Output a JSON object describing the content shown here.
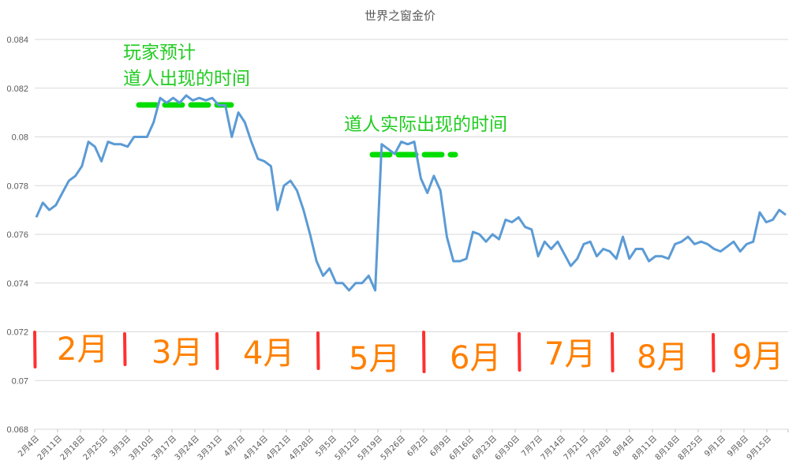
{
  "chart_data": {
    "type": "line",
    "title": "世界之窗金价",
    "xlabel": "",
    "ylabel": "",
    "ylim": [
      0.068,
      0.084
    ],
    "yticks": [
      "0.084",
      "0.082",
      "0.08",
      "0.078",
      "0.076",
      "0.074",
      "0.072",
      "0.07",
      "0.068"
    ],
    "grid": true,
    "legend": "none",
    "x_tick_labels": [
      "2月4日",
      "2月11日",
      "2月18日",
      "2月25日",
      "3月3日",
      "3月10日",
      "3月17日",
      "3月24日",
      "3月31日",
      "4月7日",
      "4月14日",
      "4月21日",
      "4月28日",
      "5月5日",
      "5月12日",
      "5月19日",
      "5月26日",
      "6月2日",
      "6月9日",
      "6月16日",
      "6月23日",
      "6月30日",
      "7月7日",
      "7月14日",
      "7月21日",
      "7月28日",
      "8月4日",
      "8月11日",
      "8月18日",
      "8月25日",
      "9月1日",
      "9月8日",
      "9月15日"
    ],
    "series": [
      {
        "name": "世界之窗金价",
        "color": "#5b9bd5",
        "values": [
          0.0767,
          0.0773,
          0.077,
          0.0772,
          0.0777,
          0.0782,
          0.0784,
          0.0788,
          0.0798,
          0.0796,
          0.079,
          0.0798,
          0.0797,
          0.0797,
          0.0796,
          0.08,
          0.08,
          0.08,
          0.0806,
          0.0816,
          0.0814,
          0.0816,
          0.0814,
          0.0817,
          0.0815,
          0.0816,
          0.0815,
          0.0816,
          0.0813,
          0.0813,
          0.08,
          0.081,
          0.0806,
          0.0798,
          0.0791,
          0.079,
          0.0788,
          0.077,
          0.078,
          0.0782,
          0.0778,
          0.077,
          0.076,
          0.0749,
          0.0743,
          0.0746,
          0.074,
          0.074,
          0.0737,
          0.074,
          0.074,
          0.0743,
          0.0737,
          0.0797,
          0.0795,
          0.0793,
          0.0798,
          0.0797,
          0.0798,
          0.0783,
          0.0777,
          0.0784,
          0.0778,
          0.0759,
          0.0749,
          0.0749,
          0.075,
          0.0761,
          0.076,
          0.0757,
          0.076,
          0.0758,
          0.0766,
          0.0765,
          0.0767,
          0.0763,
          0.0762,
          0.0751,
          0.0757,
          0.0754,
          0.0757,
          0.0752,
          0.0747,
          0.075,
          0.0756,
          0.0757,
          0.0751,
          0.0754,
          0.0753,
          0.075,
          0.0759,
          0.075,
          0.0754,
          0.0754,
          0.0749,
          0.0751,
          0.0751,
          0.075,
          0.0756,
          0.0757,
          0.0759,
          0.0756,
          0.0757,
          0.0756,
          0.0754,
          0.0753,
          0.0755,
          0.0757,
          0.0753,
          0.0756,
          0.0757,
          0.0769,
          0.0765,
          0.0766,
          0.077,
          0.0768
        ]
      }
    ],
    "annotations": [
      {
        "text": "玩家预计",
        "color": "#22cc22"
      },
      {
        "text": "道人出现的时间",
        "color": "#22cc22"
      },
      {
        "text": "道人实际出现的时间",
        "color": "#22cc22"
      }
    ],
    "month_labels": [
      "2月",
      "3月",
      "4月",
      "5月",
      "6月",
      "7月",
      "8月",
      "9月"
    ]
  },
  "annotations": {
    "expected_line1": "玩家预计",
    "expected_line2": "道人出现的时间",
    "actual": "道人实际出现的时间"
  },
  "months": {
    "m2": "2月",
    "m3": "3月",
    "m4": "4月",
    "m5": "5月",
    "m6": "6月",
    "m7": "7月",
    "m8": "8月",
    "m9": "9月"
  },
  "colors": {
    "line": "#5b9bd5",
    "annotation": "#22cc22",
    "dash": "#00dd00",
    "month_text": "#ff8000",
    "month_divider": "#ff3030",
    "grid": "#d9d9d9"
  }
}
